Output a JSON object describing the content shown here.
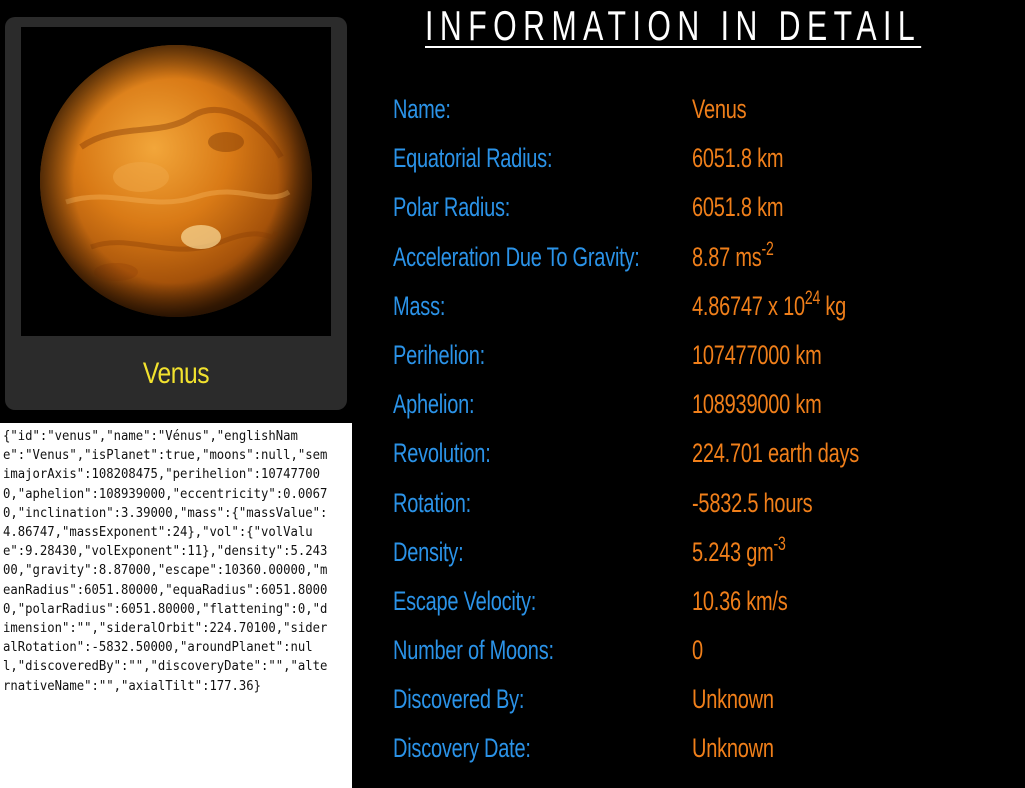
{
  "planet": {
    "name": "Venus",
    "image": "venus-planet-image"
  },
  "json_dump": "{\"id\":\"venus\",\"name\":\"Vénus\",\"englishName\":\"Venus\",\"isPlanet\":true,\"moons\":null,\"semimajorAxis\":108208475,\"perihelion\":107477000,\"aphelion\":108939000,\"eccentricity\":0.00670,\"inclination\":3.39000,\"mass\":{\"massValue\":4.86747,\"massExponent\":24},\"vol\":{\"volValue\":9.28430,\"volExponent\":11},\"density\":5.24300,\"gravity\":8.87000,\"escape\":10360.00000,\"meanRadius\":6051.80000,\"equaRadius\":6051.80000,\"polarRadius\":6051.80000,\"flattening\":0,\"dimension\":\"\",\"sideralOrbit\":224.70100,\"sideralRotation\":-5832.50000,\"aroundPlanet\":null,\"discoveredBy\":\"\",\"discoveryDate\":\"\",\"alternativeName\":\"\",\"axialTilt\":177.36}",
  "detail": {
    "title": "INFORMATION IN DETAIL",
    "rows": [
      {
        "label": "Name:",
        "value": "Venus"
      },
      {
        "label": "Equatorial Radius:",
        "value": "6051.8 km"
      },
      {
        "label": "Polar Radius:",
        "value": "6051.8 km"
      },
      {
        "label": "Acceleration Due To Gravity:",
        "value": "8.87 ms",
        "sup": "-2"
      },
      {
        "label": "Mass:",
        "value": "4.86747 x 10",
        "sup": "24",
        "suffix": " kg"
      },
      {
        "label": "Perihelion:",
        "value": "107477000 km"
      },
      {
        "label": "Aphelion:",
        "value": "108939000 km"
      },
      {
        "label": "Revolution:",
        "value": "224.701 earth days"
      },
      {
        "label": "Rotation:",
        "value": "-5832.5 hours"
      },
      {
        "label": "Density:",
        "value": "5.243 gm",
        "sup": "-3"
      },
      {
        "label": "Escape Velocity:",
        "value": "10.36 km/s"
      },
      {
        "label": "Number of Moons:",
        "value": "0"
      },
      {
        "label": "Discovered By:",
        "value": "Unknown"
      },
      {
        "label": "Discovery Date:",
        "value": "Unknown"
      }
    ]
  },
  "colors": {
    "background": "#000000",
    "label": "#2b93e8",
    "value": "#f07f1a",
    "planet_name": "#f2e22e",
    "card": "#2b2b2b"
  }
}
